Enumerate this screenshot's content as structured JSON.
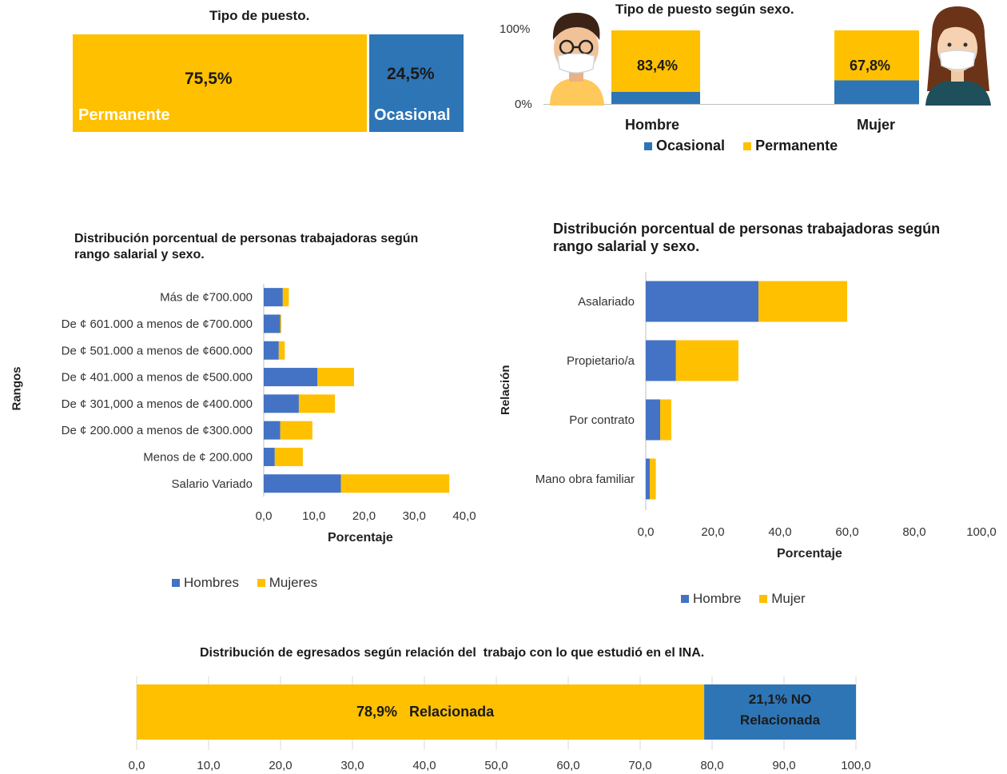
{
  "colors": {
    "yellow": "#FFC000",
    "blue": "#2E75B6",
    "blue2": "#4472C4",
    "grid": "#d9d9d9"
  },
  "chart_data": [
    {
      "id": "tipo_puesto",
      "type": "bar",
      "title": "Tipo de puesto.",
      "categories": [
        "Permanente",
        "Ocasional"
      ],
      "values": [
        75.5,
        24.5
      ],
      "value_labels": [
        "75,5%",
        "24,5%"
      ]
    },
    {
      "id": "tipo_puesto_sexo",
      "type": "bar",
      "title": "Tipo de puesto según sexo.",
      "categories": [
        "Hombre",
        "Mujer"
      ],
      "series": [
        {
          "name": "Ocasional",
          "values": [
            16.6,
            32.2
          ]
        },
        {
          "name": "Permanente",
          "values": [
            83.4,
            67.8
          ]
        }
      ],
      "value_labels": [
        "83,4%",
        "67,8%"
      ],
      "y_ticks": [
        "100%",
        "0%"
      ],
      "legend": [
        "Ocasional",
        "Permanente"
      ],
      "legend_position": "bottom"
    },
    {
      "id": "rango_salarial",
      "type": "bar",
      "title": "Distribución porcentual de personas trabajadoras según rango salarial y sexo.",
      "xlabel": "Porcentaje",
      "ylabel": "Rangos",
      "categories": [
        "Más de ¢700.000",
        "De ¢ 601.000 a menos de ¢700.000",
        "De ¢ 501.000 a menos de ¢600.000",
        "De ¢ 401.000 a menos de ¢500.000",
        "De ¢ 301,000 a menos de ¢400.000",
        "De ¢ 200.000 a menos de ¢300.000",
        "Menos de ¢ 200.000",
        "Salario Variado"
      ],
      "series": [
        {
          "name": "Hombres",
          "values": [
            3.8,
            3.3,
            3.0,
            10.7,
            7.0,
            3.3,
            2.2,
            15.4
          ]
        },
        {
          "name": "Mujeres",
          "values": [
            1.2,
            0.2,
            1.2,
            7.3,
            7.2,
            6.4,
            5.6,
            21.6
          ]
        }
      ],
      "x_ticks": [
        "0,0",
        "10,0",
        "20,0",
        "30,0",
        "40,0"
      ],
      "xlim": [
        0,
        40
      ],
      "legend": [
        "Hombres",
        "Mujeres"
      ],
      "legend_position": "bottom"
    },
    {
      "id": "relacion",
      "type": "bar",
      "title": "Distribución porcentual de personas trabajadoras según rango salarial y sexo.",
      "xlabel": "Porcentaje",
      "ylabel": "Relación",
      "categories": [
        "Asalariado",
        "Propietario/a",
        "Por contrato",
        "Mano obra familiar"
      ],
      "series": [
        {
          "name": "Hombre",
          "values": [
            33.6,
            9.0,
            4.3,
            1.2
          ]
        },
        {
          "name": "Mujer",
          "values": [
            26.4,
            18.6,
            3.3,
            1.8
          ]
        }
      ],
      "x_ticks": [
        "0,0",
        "20,0",
        "40,0",
        "60,0",
        "80,0",
        "100,0"
      ],
      "xlim": [
        0,
        100
      ],
      "legend": [
        "Hombre",
        "Mujer"
      ],
      "legend_position": "bottom"
    },
    {
      "id": "relacion_ina",
      "type": "bar",
      "title": "Distribución de egresados según relación del  trabajo con lo que estudió en el INA.",
      "categories": [
        "Relacionada",
        "NO Relacionada"
      ],
      "values": [
        78.9,
        21.1
      ],
      "labels": [
        "78,9%   Relacionada",
        "21,1% NO",
        "Relacionada"
      ],
      "x_ticks": [
        "0,0",
        "10,0",
        "20,0",
        "30,0",
        "40,0",
        "50,0",
        "60,0",
        "70,0",
        "80,0",
        "90,0",
        "100,0"
      ],
      "xlim": [
        0,
        100
      ]
    }
  ]
}
